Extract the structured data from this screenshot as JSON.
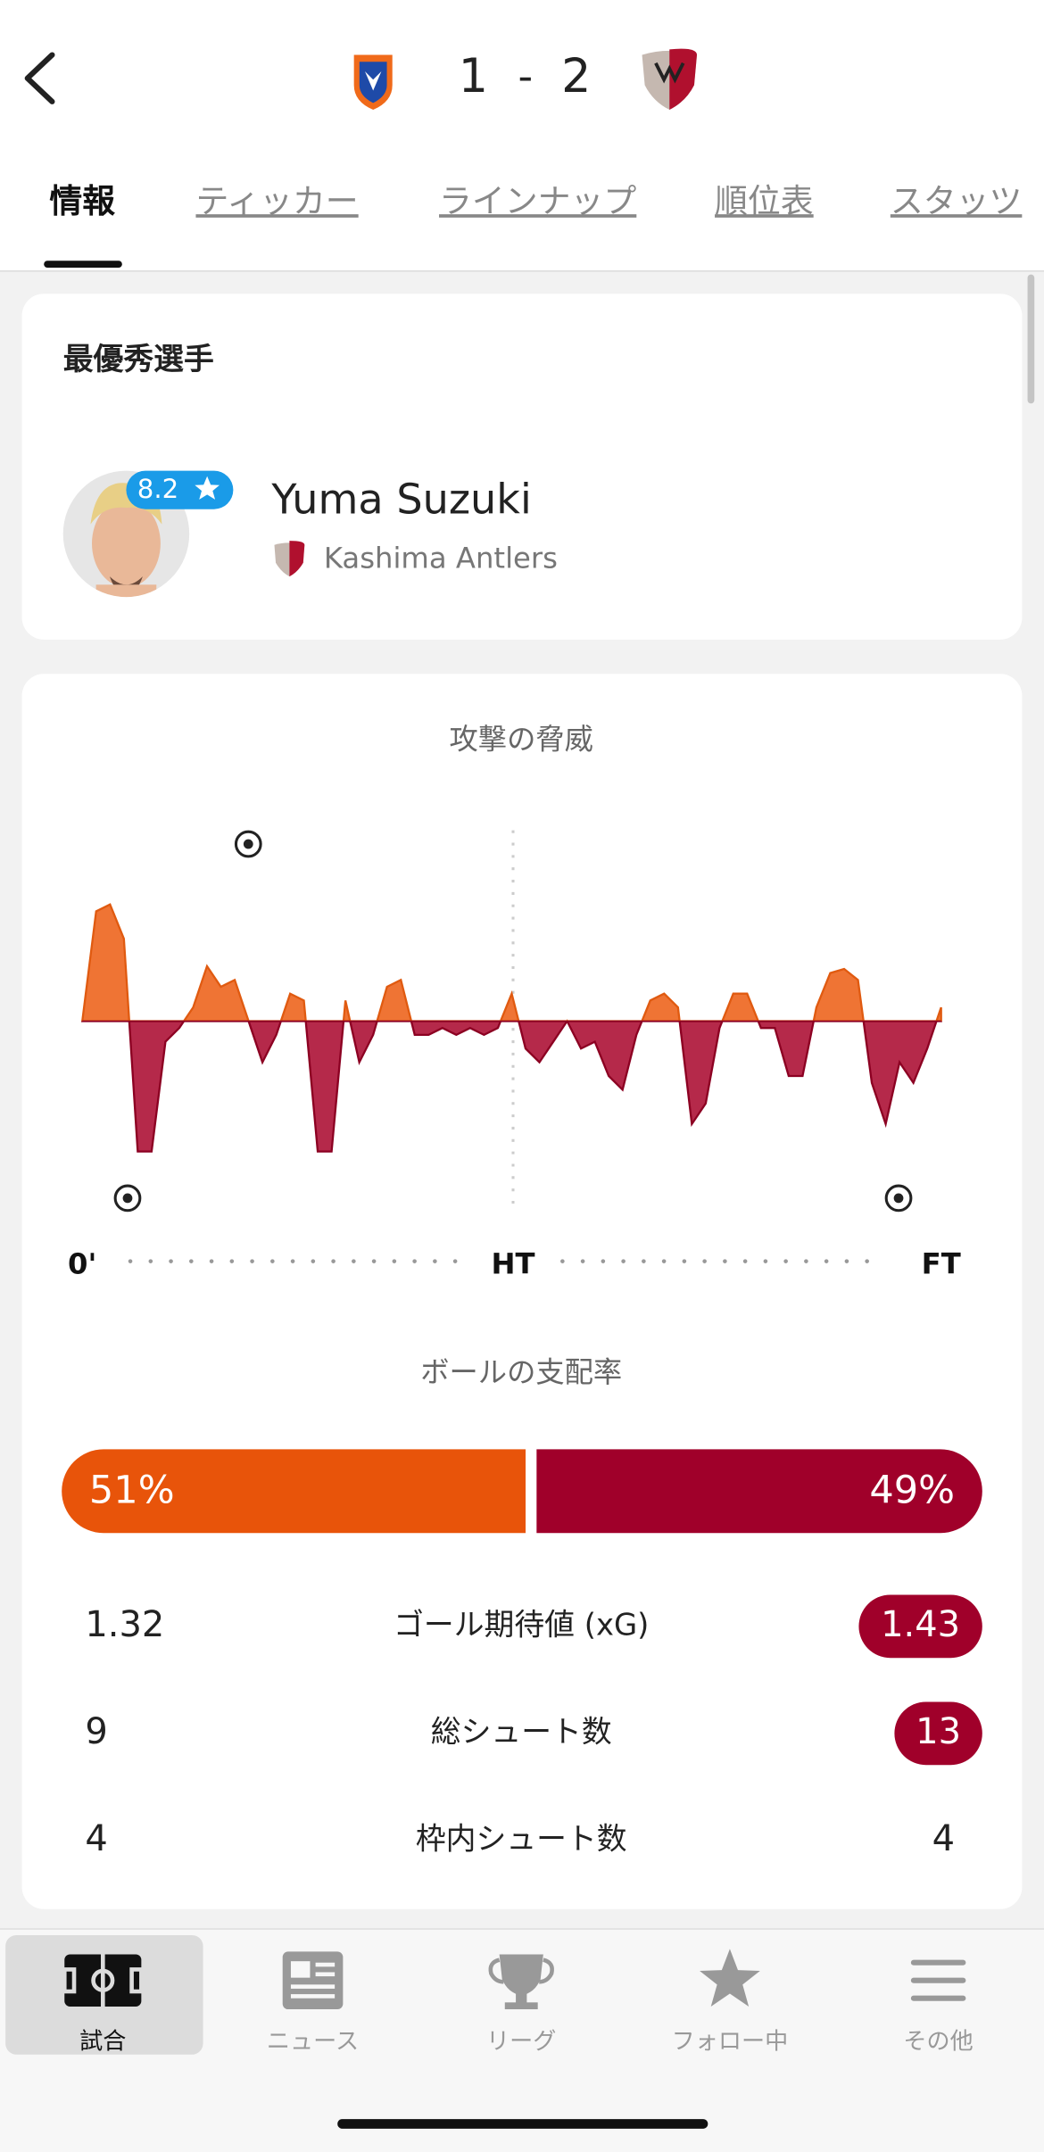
{
  "header": {
    "home_score": 1,
    "separator": "-",
    "away_score": 2
  },
  "tabs": [
    "情報",
    "ティッカー",
    "ラインナップ",
    "順位表",
    "スタッツ"
  ],
  "player_of_match": {
    "title": "最優秀選手",
    "rating": 8.2,
    "name": "Yuma Suzuki",
    "team": "Kashima Antlers"
  },
  "momentum": {
    "title": "攻撃の脅威",
    "labels": [
      "0'",
      "HT",
      "FT"
    ],
    "values": [
      0,
      80,
      85,
      60,
      -95,
      -95,
      -15,
      -5,
      10,
      40,
      25,
      30,
      0,
      -30,
      -10,
      20,
      15,
      -95,
      -95,
      15,
      -30,
      -10,
      25,
      30,
      -10,
      -10,
      -5,
      -10,
      -5,
      -10,
      -5,
      20,
      -20,
      -30,
      -15,
      0,
      -20,
      -15,
      -40,
      -50,
      -10,
      15,
      20,
      10,
      -75,
      -60,
      -5,
      20,
      20,
      -5,
      -5,
      -40,
      -40,
      10,
      35,
      38,
      30,
      -45,
      -75,
      -30,
      -45,
      -20,
      10
    ]
  },
  "possession": {
    "title": "ボールの支配率",
    "values": [
      51,
      49
    ],
    "value_labels": [
      "51%",
      "49%"
    ]
  },
  "stats": [
    {
      "label": "ゴール期待値 (xG)",
      "home": 1.32,
      "away": 1.43
    },
    {
      "label": "総シュート数",
      "home": 9,
      "away": 13
    },
    {
      "label": "枠内シュート数",
      "home": 4,
      "away": 4
    }
  ],
  "nav": [
    "試合",
    "ニュース",
    "リーグ",
    "フォロー中",
    "その他"
  ]
}
